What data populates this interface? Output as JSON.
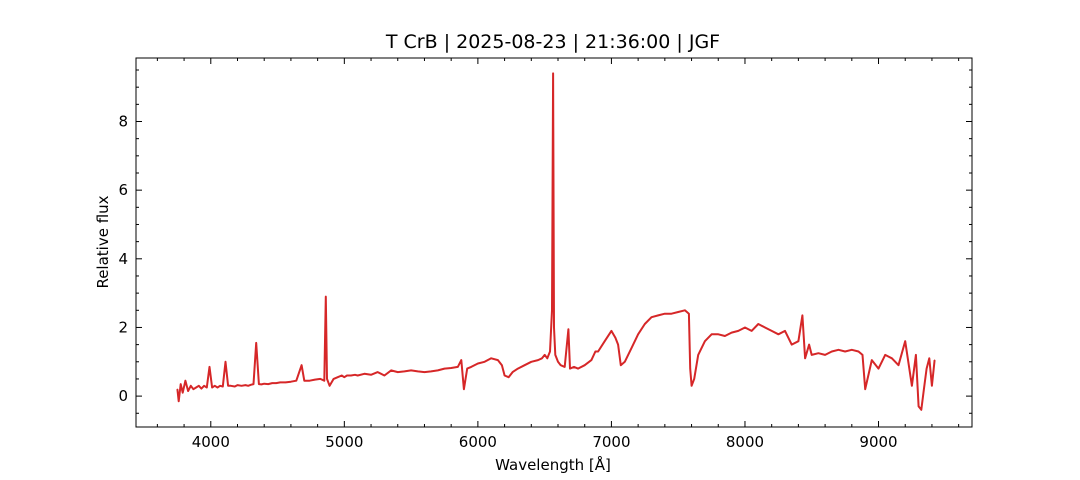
{
  "chart_data": {
    "type": "line",
    "title": "T CrB | 2025-08-23 | 21:36:00 | JGF",
    "xlabel": "Wavelength [Å]",
    "ylabel": "Relative flux",
    "xlim": [
      3440,
      9700
    ],
    "ylim": [
      -0.9,
      9.85
    ],
    "xticks": [
      4000,
      5000,
      6000,
      7000,
      8000,
      9000
    ],
    "xtick_labels": [
      "4000",
      "5000",
      "6000",
      "7000",
      "8000",
      "9000"
    ],
    "xminor_step": 200,
    "yticks": [
      0,
      2,
      4,
      6,
      8
    ],
    "ytick_labels": [
      "0",
      "2",
      "4",
      "6",
      "8"
    ],
    "yminor_step": 0.5,
    "grid": false,
    "series_color": "#d62728",
    "series": [
      {
        "x": [
          3750,
          3760,
          3775,
          3790,
          3810,
          3830,
          3850,
          3870,
          3890,
          3910,
          3930,
          3950,
          3970,
          3990,
          4010,
          4030,
          4050,
          4070,
          4090,
          4110,
          4130,
          4150,
          4180,
          4200,
          4230,
          4260,
          4280,
          4300,
          4320,
          4340,
          4360,
          4380,
          4400,
          4430,
          4460,
          4490,
          4520,
          4560,
          4600,
          4640,
          4680,
          4700,
          4740,
          4780,
          4820,
          4850,
          4861,
          4870,
          4890,
          4920,
          4950,
          4980,
          5000,
          5020,
          5050,
          5080,
          5100,
          5150,
          5200,
          5250,
          5300,
          5350,
          5400,
          5450,
          5500,
          5550,
          5600,
          5650,
          5700,
          5750,
          5800,
          5850,
          5876,
          5895,
          5920,
          5950,
          6000,
          6050,
          6100,
          6150,
          6180,
          6200,
          6230,
          6260,
          6300,
          6350,
          6400,
          6450,
          6480,
          6500,
          6520,
          6540,
          6555,
          6563,
          6570,
          6580,
          6600,
          6620,
          6650,
          6678,
          6690,
          6720,
          6750,
          6800,
          6850,
          6880,
          6900,
          6950,
          7000,
          7030,
          7050,
          7070,
          7100,
          7150,
          7200,
          7250,
          7300,
          7350,
          7400,
          7450,
          7500,
          7550,
          7580,
          7590,
          7600,
          7620,
          7650,
          7700,
          7750,
          7800,
          7850,
          7900,
          7950,
          8000,
          8050,
          8100,
          8150,
          8200,
          8250,
          8300,
          8350,
          8400,
          8430,
          8450,
          8480,
          8500,
          8550,
          8600,
          8650,
          8700,
          8750,
          8800,
          8850,
          8880,
          8900,
          8950,
          9000,
          9050,
          9100,
          9150,
          9200,
          9250,
          9280,
          9300,
          9320,
          9340,
          9360,
          9380,
          9400,
          9420
        ],
        "y": [
          0.2,
          -0.15,
          0.35,
          0.1,
          0.45,
          0.15,
          0.3,
          0.2,
          0.25,
          0.3,
          0.22,
          0.3,
          0.25,
          0.85,
          0.25,
          0.3,
          0.25,
          0.3,
          0.28,
          1.0,
          0.3,
          0.3,
          0.28,
          0.32,
          0.3,
          0.32,
          0.3,
          0.33,
          0.35,
          1.55,
          0.35,
          0.34,
          0.36,
          0.35,
          0.38,
          0.38,
          0.4,
          0.4,
          0.42,
          0.45,
          0.9,
          0.45,
          0.45,
          0.48,
          0.5,
          0.45,
          2.9,
          0.5,
          0.3,
          0.5,
          0.55,
          0.6,
          0.55,
          0.6,
          0.6,
          0.62,
          0.6,
          0.65,
          0.62,
          0.7,
          0.6,
          0.75,
          0.7,
          0.72,
          0.75,
          0.72,
          0.7,
          0.72,
          0.75,
          0.8,
          0.82,
          0.85,
          1.05,
          0.2,
          0.8,
          0.85,
          0.95,
          1.0,
          1.1,
          1.05,
          0.9,
          0.6,
          0.55,
          0.7,
          0.8,
          0.9,
          1.0,
          1.05,
          1.1,
          1.2,
          1.1,
          1.3,
          2.5,
          9.4,
          2.0,
          1.2,
          1.0,
          0.9,
          0.85,
          1.95,
          0.8,
          0.85,
          0.8,
          0.9,
          1.05,
          1.3,
          1.3,
          1.6,
          1.9,
          1.7,
          1.5,
          0.9,
          1.0,
          1.4,
          1.8,
          2.1,
          2.3,
          2.35,
          2.4,
          2.4,
          2.45,
          2.5,
          2.4,
          0.8,
          0.3,
          0.5,
          1.2,
          1.6,
          1.8,
          1.8,
          1.75,
          1.85,
          1.9,
          2.0,
          1.9,
          2.1,
          2.0,
          1.9,
          1.8,
          1.9,
          1.5,
          1.6,
          2.35,
          1.1,
          1.5,
          1.2,
          1.25,
          1.2,
          1.3,
          1.35,
          1.3,
          1.35,
          1.3,
          1.2,
          0.2,
          1.05,
          0.8,
          1.2,
          1.1,
          0.9,
          1.6,
          0.3,
          1.2,
          -0.3,
          -0.4,
          0.2,
          0.8,
          1.1,
          0.3,
          1.05
        ]
      }
    ]
  }
}
